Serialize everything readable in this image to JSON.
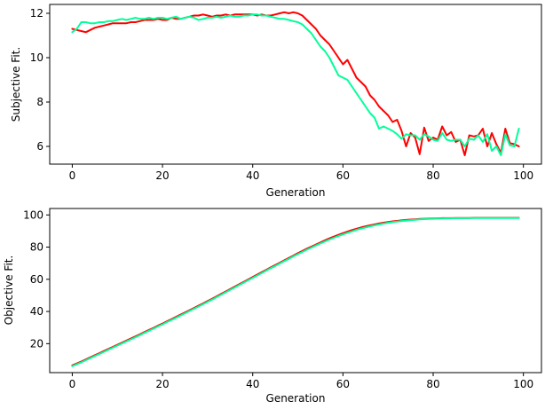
{
  "colors": {
    "background": "#ffffff",
    "series_red": "#ff0000",
    "series_green": "#00ff99",
    "axes": "#000000"
  },
  "chart_data": [
    {
      "type": "line",
      "xlabel": "Generation",
      "ylabel": "Subjective Fit.",
      "xlim": [
        -5,
        104
      ],
      "ylim": [
        5.2,
        12.4
      ],
      "xticks": [
        0,
        20,
        40,
        60,
        80,
        100
      ],
      "yticks": [
        6,
        8,
        10,
        12
      ],
      "grid": false,
      "x": [
        0,
        1,
        2,
        3,
        4,
        5,
        6,
        7,
        8,
        9,
        10,
        11,
        12,
        13,
        14,
        15,
        16,
        17,
        18,
        19,
        20,
        21,
        22,
        23,
        24,
        25,
        26,
        27,
        28,
        29,
        30,
        31,
        32,
        33,
        34,
        35,
        36,
        37,
        38,
        39,
        40,
        41,
        42,
        43,
        44,
        45,
        46,
        47,
        48,
        49,
        50,
        51,
        52,
        53,
        54,
        55,
        56,
        57,
        58,
        59,
        60,
        61,
        62,
        63,
        64,
        65,
        66,
        67,
        68,
        69,
        70,
        71,
        72,
        73,
        74,
        75,
        76,
        77,
        78,
        79,
        80,
        81,
        82,
        83,
        84,
        85,
        86,
        87,
        88,
        89,
        90,
        91,
        92,
        93,
        94,
        95,
        96,
        97,
        98,
        99
      ],
      "series": [
        {
          "color": "#ff0000",
          "values": [
            11.3,
            11.25,
            11.2,
            11.15,
            11.25,
            11.35,
            11.4,
            11.45,
            11.5,
            11.55,
            11.55,
            11.55,
            11.55,
            11.6,
            11.6,
            11.65,
            11.7,
            11.7,
            11.7,
            11.75,
            11.7,
            11.7,
            11.8,
            11.75,
            11.75,
            11.8,
            11.85,
            11.9,
            11.9,
            11.95,
            11.9,
            11.85,
            11.9,
            11.9,
            11.95,
            11.9,
            11.95,
            11.95,
            11.95,
            11.95,
            11.95,
            11.9,
            11.95,
            11.9,
            11.9,
            11.95,
            12.0,
            12.05,
            12.0,
            12.05,
            12.0,
            11.9,
            11.7,
            11.5,
            11.3,
            11.0,
            10.8,
            10.6,
            10.3,
            10.0,
            9.7,
            9.9,
            9.5,
            9.1,
            8.9,
            8.7,
            8.3,
            8.1,
            7.8,
            7.6,
            7.4,
            7.1,
            7.2,
            6.7,
            6.0,
            6.6,
            6.4,
            5.65,
            6.85,
            6.25,
            6.4,
            6.3,
            6.9,
            6.5,
            6.65,
            6.2,
            6.3,
            5.6,
            6.5,
            6.45,
            6.5,
            6.8,
            6.0,
            6.6,
            6.1,
            5.7,
            6.8,
            6.15,
            6.1,
            6.0
          ]
        },
        {
          "color": "#00ff99",
          "values": [
            11.15,
            11.3,
            11.6,
            11.6,
            11.55,
            11.55,
            11.6,
            11.6,
            11.65,
            11.65,
            11.7,
            11.75,
            11.7,
            11.75,
            11.8,
            11.75,
            11.75,
            11.8,
            11.75,
            11.8,
            11.8,
            11.75,
            11.8,
            11.85,
            11.75,
            11.8,
            11.85,
            11.8,
            11.7,
            11.75,
            11.8,
            11.8,
            11.85,
            11.8,
            11.85,
            11.9,
            11.85,
            11.85,
            11.9,
            11.9,
            11.95,
            11.95,
            11.9,
            11.9,
            11.85,
            11.8,
            11.75,
            11.75,
            11.7,
            11.65,
            11.6,
            11.5,
            11.3,
            11.1,
            10.8,
            10.5,
            10.3,
            10.0,
            9.6,
            9.2,
            9.1,
            9.0,
            8.7,
            8.4,
            8.1,
            7.8,
            7.5,
            7.3,
            6.8,
            6.9,
            6.8,
            6.7,
            6.55,
            6.35,
            6.55,
            6.5,
            6.5,
            6.3,
            6.55,
            6.45,
            6.3,
            6.25,
            6.6,
            6.3,
            6.25,
            6.3,
            6.3,
            6.0,
            6.35,
            6.3,
            6.5,
            6.2,
            6.55,
            5.8,
            6.0,
            5.6,
            6.55,
            6.05,
            6.0,
            6.8
          ]
        }
      ]
    },
    {
      "type": "line",
      "xlabel": "Generation",
      "ylabel": "Objective Fit.",
      "xlim": [
        -5,
        104
      ],
      "ylim": [
        2,
        104
      ],
      "xticks": [
        0,
        20,
        40,
        60,
        80,
        100
      ],
      "yticks": [
        20,
        40,
        60,
        80,
        100
      ],
      "grid": false,
      "x": [
        0,
        1,
        2,
        3,
        4,
        5,
        6,
        7,
        8,
        9,
        10,
        11,
        12,
        13,
        14,
        15,
        16,
        17,
        18,
        19,
        20,
        21,
        22,
        23,
        24,
        25,
        26,
        27,
        28,
        29,
        30,
        31,
        32,
        33,
        34,
        35,
        36,
        37,
        38,
        39,
        40,
        41,
        42,
        43,
        44,
        45,
        46,
        47,
        48,
        49,
        50,
        51,
        52,
        53,
        54,
        55,
        56,
        57,
        58,
        59,
        60,
        61,
        62,
        63,
        64,
        65,
        66,
        67,
        68,
        69,
        70,
        71,
        72,
        73,
        74,
        75,
        76,
        77,
        78,
        79,
        80,
        81,
        82,
        83,
        84,
        85,
        86,
        87,
        88,
        89,
        90,
        91,
        92,
        93,
        94,
        95,
        96,
        97,
        98,
        99
      ],
      "series": [
        {
          "color": "#ff0000",
          "values": [
            6.5,
            7.7,
            8.9,
            10.2,
            11.5,
            12.8,
            14.1,
            15.4,
            16.7,
            18.0,
            19.3,
            20.6,
            21.9,
            23.2,
            24.5,
            25.8,
            27.2,
            28.5,
            29.8,
            31.2,
            32.5,
            33.9,
            35.2,
            36.6,
            38.0,
            39.4,
            40.8,
            42.2,
            43.6,
            45.0,
            46.5,
            47.9,
            49.4,
            50.9,
            52.4,
            53.9,
            55.4,
            56.9,
            58.4,
            59.9,
            61.4,
            62.9,
            64.4,
            65.9,
            67.4,
            68.8,
            70.3,
            71.8,
            73.3,
            74.7,
            76.2,
            77.6,
            79.0,
            80.3,
            81.6,
            82.9,
            84.2,
            85.4,
            86.5,
            87.6,
            88.7,
            89.6,
            90.6,
            91.4,
            92.2,
            92.9,
            93.5,
            94.1,
            94.7,
            95.2,
            95.6,
            96.0,
            96.3,
            96.6,
            96.9,
            97.1,
            97.3,
            97.5,
            97.6,
            97.7,
            97.8,
            97.9,
            98.0,
            98.0,
            98.0,
            98.1,
            98.1,
            98.1,
            98.1,
            98.2,
            98.2,
            98.2,
            98.2,
            98.2,
            98.2,
            98.2,
            98.2,
            98.2,
            98.2,
            98.2
          ]
        },
        {
          "color": "#00ff99",
          "values": [
            6.0,
            7.2,
            8.4,
            9.7,
            11.0,
            12.3,
            13.6,
            14.9,
            16.2,
            17.5,
            18.8,
            20.1,
            21.4,
            22.7,
            24.0,
            25.3,
            26.7,
            28.0,
            29.3,
            30.7,
            32.0,
            33.4,
            34.7,
            36.1,
            37.5,
            38.9,
            40.3,
            41.7,
            43.1,
            44.5,
            46.0,
            47.4,
            48.9,
            50.4,
            51.9,
            53.4,
            54.9,
            56.4,
            57.9,
            59.4,
            60.9,
            62.4,
            63.9,
            65.4,
            66.9,
            68.3,
            69.8,
            71.3,
            72.7,
            74.2,
            75.6,
            77.0,
            78.4,
            79.7,
            81.0,
            82.3,
            83.5,
            84.7,
            85.8,
            86.9,
            87.9,
            88.9,
            89.8,
            90.7,
            91.5,
            92.2,
            92.9,
            93.5,
            94.1,
            94.6,
            95.1,
            95.5,
            95.9,
            96.2,
            96.5,
            96.8,
            97.0,
            97.2,
            97.4,
            97.5,
            97.6,
            97.7,
            97.8,
            97.9,
            97.9,
            98.0,
            98.0,
            98.0,
            98.1,
            98.1,
            98.1,
            98.1,
            98.1,
            98.1,
            98.1,
            98.1,
            98.1,
            98.1,
            98.1,
            98.1
          ]
        }
      ]
    }
  ]
}
